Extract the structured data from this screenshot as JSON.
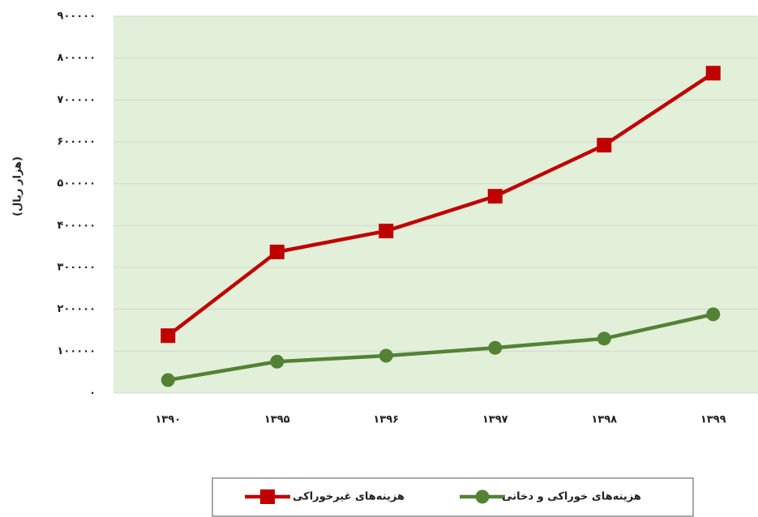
{
  "chart_data": {
    "type": "line",
    "y_label": "(هزار ریال)",
    "categories": [
      "۱۳۹۰",
      "۱۳۹۵",
      "۱۳۹۶",
      "۱۳۹۷",
      "۱۳۹۸",
      "۱۳۹۹"
    ],
    "series": [
      {
        "name": "هزینه‌های خوراکی و دخانی",
        "color": "#548235",
        "marker": "circle",
        "values": [
          31000,
          75000,
          89000,
          108000,
          130000,
          188000
        ]
      },
      {
        "name": "هزینه‌های غیرخوراکی",
        "color": "#c00000",
        "marker": "square",
        "values": [
          137000,
          337000,
          387000,
          470000,
          592000,
          764000
        ]
      }
    ],
    "ylim": [
      0,
      900000
    ],
    "yticks": [
      {
        "value": 0,
        "label": "٠"
      },
      {
        "value": 100000,
        "label": "۱۰۰۰۰۰"
      },
      {
        "value": 200000,
        "label": "۲۰۰۰۰۰"
      },
      {
        "value": 300000,
        "label": "۳۰۰۰۰۰"
      },
      {
        "value": 400000,
        "label": "۴۰۰۰۰۰"
      },
      {
        "value": 500000,
        "label": "۵۰۰۰۰۰"
      },
      {
        "value": 600000,
        "label": "۶۰۰۰۰۰"
      },
      {
        "value": 700000,
        "label": "۷۰۰۰۰۰"
      },
      {
        "value": 800000,
        "label": "۸۰۰۰۰۰"
      },
      {
        "value": 900000,
        "label": "۹۰۰۰۰۰"
      }
    ],
    "grid": true,
    "plot_background": "#e2efd9",
    "legend": "bottom"
  }
}
